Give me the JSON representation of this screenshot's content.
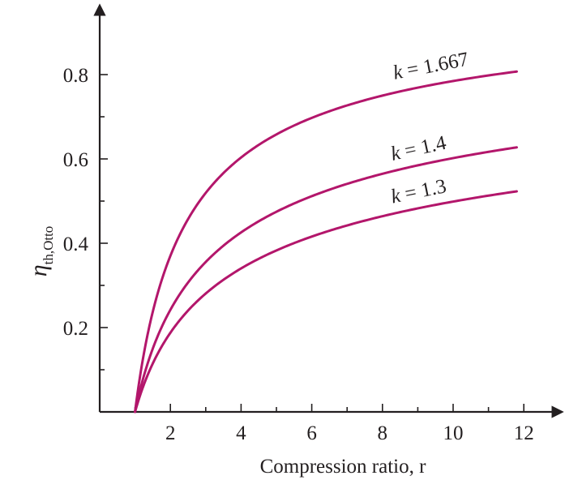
{
  "chart_data": {
    "type": "line",
    "title": "",
    "xlabel": "Compression ratio, r",
    "ylabel": "η th,Otto",
    "xlim": [
      0,
      13
    ],
    "ylim": [
      0,
      0.9
    ],
    "xticks_labeled": [
      "2",
      "4",
      "6",
      "8",
      "10",
      "12"
    ],
    "yticks_labeled": [
      "0.2",
      "0.4",
      "0.6",
      "0.8"
    ],
    "grid": false,
    "legend": "inline labels",
    "colors": {
      "curve": "#b3166b",
      "axis": "#231f20"
    },
    "series": [
      {
        "name": "k = 1.667",
        "k": 1.667,
        "x_range": [
          1,
          11.8
        ]
      },
      {
        "name": "k = 1.4",
        "k": 1.4,
        "x_range": [
          1,
          11.8
        ]
      },
      {
        "name": "k = 1.3",
        "k": 1.3,
        "x_range": [
          1,
          11.8
        ]
      }
    ]
  }
}
